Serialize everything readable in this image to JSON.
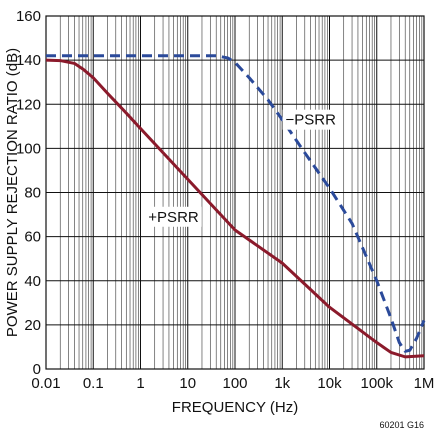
{
  "chart_data": {
    "type": "line",
    "xlabel": "FREQUENCY (Hz)",
    "ylabel": "POWER SUPPLY REJECTION RATIO (dB)",
    "x_scale": "log",
    "xlim": [
      0.01,
      1000000
    ],
    "ylim": [
      0,
      160
    ],
    "grid": true,
    "x_ticks": [
      {
        "value": 0.01,
        "label": "0.01"
      },
      {
        "value": 0.1,
        "label": "0.1"
      },
      {
        "value": 1,
        "label": "1"
      },
      {
        "value": 10,
        "label": "10"
      },
      {
        "value": 100,
        "label": "100"
      },
      {
        "value": 1000,
        "label": "1k"
      },
      {
        "value": 10000,
        "label": "10k"
      },
      {
        "value": 100000,
        "label": "100k"
      },
      {
        "value": 1000000,
        "label": "1M"
      }
    ],
    "y_ticks": [
      {
        "value": 0,
        "label": "0"
      },
      {
        "value": 20,
        "label": "20"
      },
      {
        "value": 40,
        "label": "40"
      },
      {
        "value": 60,
        "label": "60"
      },
      {
        "value": 80,
        "label": "80"
      },
      {
        "value": 100,
        "label": "100"
      },
      {
        "value": 120,
        "label": "120"
      },
      {
        "value": 140,
        "label": "140"
      },
      {
        "value": 160,
        "label": "160"
      }
    ],
    "series": [
      {
        "name": "+PSRR",
        "color": "#8b1a2b",
        "style": "solid",
        "label_at": {
          "x": 5,
          "y": 69
        },
        "points": [
          [
            0.01,
            140
          ],
          [
            0.02,
            139.8
          ],
          [
            0.04,
            138.5
          ],
          [
            0.06,
            136
          ],
          [
            0.1,
            132
          ],
          [
            0.2,
            125
          ],
          [
            0.5,
            116
          ],
          [
            1,
            109
          ],
          [
            10,
            86
          ],
          [
            100,
            63
          ],
          [
            1000,
            48
          ],
          [
            10000,
            28
          ],
          [
            100000,
            12
          ],
          [
            200000,
            7.5
          ],
          [
            400000,
            5.5
          ],
          [
            1000000,
            6
          ]
        ]
      },
      {
        "name": "−PSRR",
        "color": "#2b4a9a",
        "style": "dashed",
        "label_at": {
          "x": 4000,
          "y": 113
        },
        "points": [
          [
            0.01,
            142
          ],
          [
            1,
            142
          ],
          [
            10,
            142
          ],
          [
            40,
            142
          ],
          [
            70,
            141
          ],
          [
            100,
            139
          ],
          [
            200,
            132
          ],
          [
            500,
            122
          ],
          [
            1000,
            113
          ],
          [
            3000,
            98
          ],
          [
            10000,
            82
          ],
          [
            30000,
            66
          ],
          [
            100000,
            40
          ],
          [
            200000,
            23
          ],
          [
            300000,
            12
          ],
          [
            400000,
            8
          ],
          [
            500000,
            8.5
          ],
          [
            700000,
            14
          ],
          [
            1000000,
            22
          ]
        ]
      }
    ]
  },
  "figure_id": "60201 G16"
}
